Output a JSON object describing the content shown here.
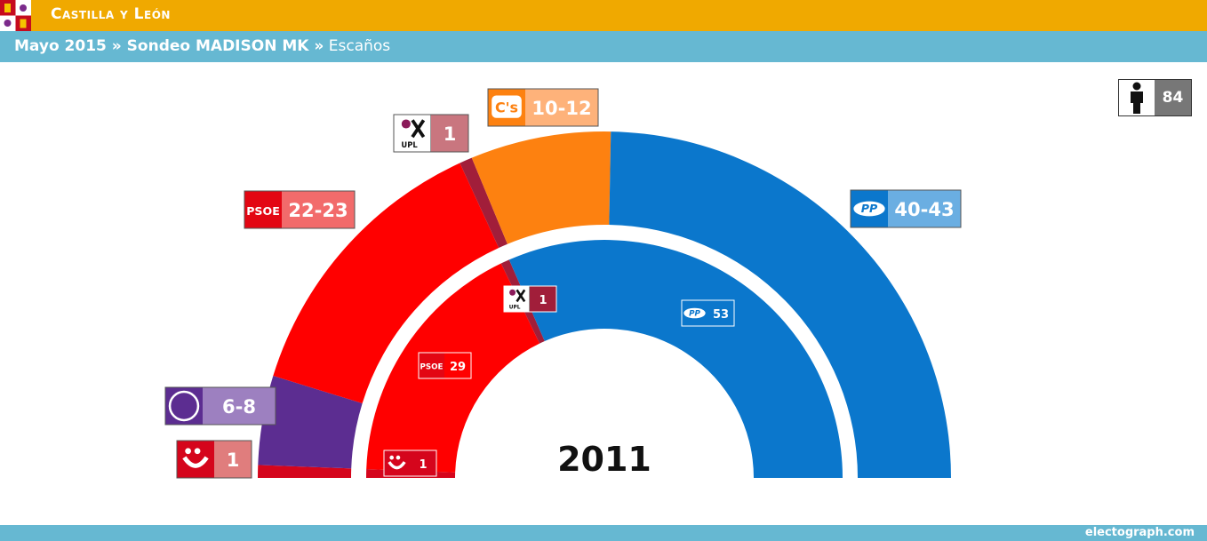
{
  "header": {
    "region": "Castilla y León",
    "subtitle_bold": "Mayo 2015 » Sondeo MADISON MK »",
    "subtitle_light": " Escaños"
  },
  "total_seats": "84",
  "footer": {
    "credit": "electograph.com"
  },
  "chart_data": {
    "type": "parliament-donut",
    "title": "",
    "total_seats": 84,
    "rings": [
      {
        "name": "Sondeo MADISON MK",
        "series": [
          {
            "party": "IU",
            "label": "1",
            "value": 1,
            "color": "#d5051c",
            "label_color": "#e07d7d",
            "logo": "iu-logo"
          },
          {
            "party": "Podemos",
            "label": "6-8",
            "value": 7,
            "color": "#5c2d91",
            "label_color": "#9d80c0",
            "logo": "podemos-logo"
          },
          {
            "party": "PSOE",
            "label": "22-23",
            "value": 22.5,
            "color": "#ff0000",
            "label_color": "#f26b6b",
            "logo": "psoe-logo"
          },
          {
            "party": "UPL",
            "label": "1",
            "value": 1,
            "color": "#a11e3a",
            "label_color": "#c9767f",
            "logo": "upl-logo"
          },
          {
            "party": "C's",
            "label": "10-12",
            "value": 11,
            "color": "#fd8110",
            "label_color": "#feb27a",
            "logo": "cs-logo"
          },
          {
            "party": "PP",
            "label": "40-43",
            "value": 41.5,
            "color": "#0b77cc",
            "label_color": "#6aaee2",
            "logo": "pp-logo"
          }
        ]
      },
      {
        "name": "2011",
        "year_label": "2011",
        "series": [
          {
            "party": "IU",
            "label": "1",
            "value": 1,
            "color": "#d5051c",
            "logo": "iu-logo"
          },
          {
            "party": "PSOE",
            "label": "29",
            "value": 29,
            "color": "#ff0000",
            "logo": "psoe-logo"
          },
          {
            "party": "UPL",
            "label": "1",
            "value": 1,
            "color": "#a11e3a",
            "logo": "upl-logo"
          },
          {
            "party": "PP",
            "label": "53",
            "value": 53,
            "color": "#0b77cc",
            "logo": "pp-logo"
          }
        ]
      }
    ],
    "logo_texts": {
      "psoe": "PSOE",
      "upl": "UPL",
      "cs": "C's",
      "pp": "PP"
    }
  }
}
